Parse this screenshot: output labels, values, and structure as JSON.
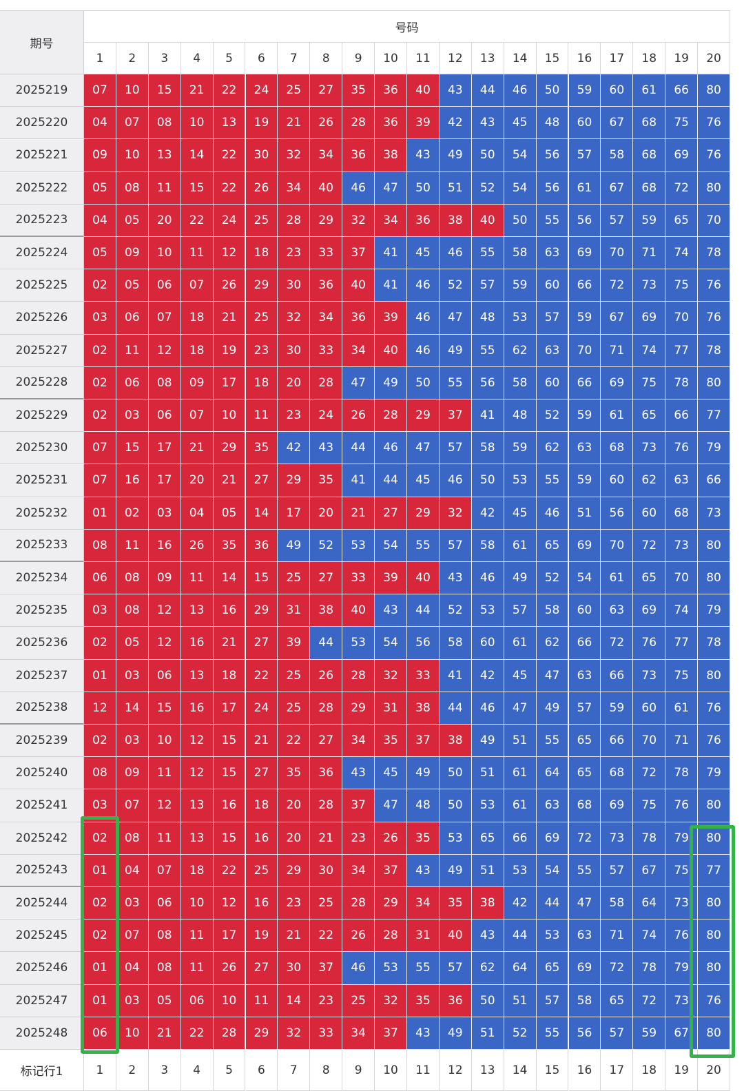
{
  "table": {
    "header": {
      "period": "期号",
      "numbers": "号码",
      "columns": [
        1,
        2,
        3,
        4,
        5,
        6,
        7,
        8,
        9,
        10,
        11,
        12,
        13,
        14,
        15,
        16,
        17,
        18,
        19,
        20
      ]
    },
    "rows": [
      {
        "period": "2025219",
        "numbers": [
          "07",
          "10",
          "15",
          "21",
          "22",
          "24",
          "25",
          "27",
          "35",
          "36",
          "40",
          "43",
          "44",
          "46",
          "50",
          "59",
          "60",
          "61",
          "66",
          "80"
        ]
      },
      {
        "period": "2025220",
        "numbers": [
          "04",
          "07",
          "08",
          "10",
          "13",
          "19",
          "21",
          "26",
          "28",
          "36",
          "39",
          "42",
          "43",
          "45",
          "48",
          "60",
          "67",
          "68",
          "75",
          "76"
        ]
      },
      {
        "period": "2025221",
        "numbers": [
          "09",
          "10",
          "13",
          "14",
          "22",
          "30",
          "32",
          "34",
          "36",
          "38",
          "43",
          "49",
          "50",
          "54",
          "56",
          "57",
          "58",
          "68",
          "69",
          "76"
        ]
      },
      {
        "period": "2025222",
        "numbers": [
          "05",
          "08",
          "11",
          "15",
          "22",
          "26",
          "34",
          "40",
          "46",
          "47",
          "50",
          "51",
          "52",
          "54",
          "56",
          "61",
          "67",
          "68",
          "72",
          "80"
        ]
      },
      {
        "period": "2025223",
        "numbers": [
          "04",
          "05",
          "20",
          "22",
          "24",
          "25",
          "28",
          "29",
          "32",
          "34",
          "36",
          "38",
          "40",
          "50",
          "55",
          "56",
          "57",
          "59",
          "65",
          "70"
        ]
      },
      {
        "period": "2025224",
        "numbers": [
          "05",
          "09",
          "10",
          "11",
          "12",
          "18",
          "23",
          "33",
          "37",
          "41",
          "45",
          "46",
          "55",
          "58",
          "63",
          "69",
          "70",
          "71",
          "74",
          "78"
        ]
      },
      {
        "period": "2025225",
        "numbers": [
          "02",
          "05",
          "06",
          "07",
          "26",
          "29",
          "30",
          "36",
          "40",
          "41",
          "46",
          "52",
          "57",
          "59",
          "60",
          "66",
          "72",
          "73",
          "75",
          "76"
        ]
      },
      {
        "period": "2025226",
        "numbers": [
          "03",
          "06",
          "07",
          "18",
          "21",
          "25",
          "32",
          "34",
          "36",
          "39",
          "46",
          "47",
          "48",
          "53",
          "57",
          "59",
          "67",
          "69",
          "70",
          "76"
        ]
      },
      {
        "period": "2025227",
        "numbers": [
          "02",
          "11",
          "12",
          "18",
          "19",
          "23",
          "30",
          "33",
          "34",
          "40",
          "46",
          "49",
          "55",
          "62",
          "63",
          "70",
          "71",
          "74",
          "77",
          "78"
        ]
      },
      {
        "period": "2025228",
        "numbers": [
          "02",
          "06",
          "08",
          "09",
          "17",
          "18",
          "20",
          "28",
          "47",
          "49",
          "50",
          "55",
          "56",
          "58",
          "60",
          "66",
          "69",
          "75",
          "78",
          "80"
        ]
      },
      {
        "period": "2025229",
        "numbers": [
          "02",
          "03",
          "06",
          "07",
          "10",
          "11",
          "23",
          "24",
          "26",
          "28",
          "29",
          "37",
          "41",
          "48",
          "52",
          "59",
          "61",
          "65",
          "66",
          "77"
        ]
      },
      {
        "period": "2025230",
        "numbers": [
          "07",
          "15",
          "17",
          "21",
          "29",
          "35",
          "42",
          "43",
          "44",
          "46",
          "47",
          "57",
          "58",
          "59",
          "62",
          "63",
          "68",
          "73",
          "76",
          "79"
        ]
      },
      {
        "period": "2025231",
        "numbers": [
          "07",
          "16",
          "17",
          "20",
          "21",
          "27",
          "29",
          "35",
          "41",
          "44",
          "45",
          "46",
          "50",
          "53",
          "55",
          "59",
          "60",
          "62",
          "63",
          "66"
        ]
      },
      {
        "period": "2025232",
        "numbers": [
          "01",
          "02",
          "03",
          "04",
          "05",
          "14",
          "17",
          "20",
          "21",
          "27",
          "29",
          "32",
          "42",
          "45",
          "46",
          "51",
          "56",
          "60",
          "68",
          "73"
        ]
      },
      {
        "period": "2025233",
        "numbers": [
          "08",
          "11",
          "16",
          "26",
          "35",
          "36",
          "49",
          "52",
          "53",
          "54",
          "55",
          "57",
          "58",
          "61",
          "65",
          "69",
          "70",
          "72",
          "73",
          "80"
        ]
      },
      {
        "period": "2025234",
        "numbers": [
          "06",
          "08",
          "09",
          "11",
          "14",
          "15",
          "25",
          "27",
          "33",
          "39",
          "40",
          "43",
          "46",
          "49",
          "52",
          "54",
          "61",
          "65",
          "70",
          "80"
        ]
      },
      {
        "period": "2025235",
        "numbers": [
          "03",
          "08",
          "12",
          "13",
          "16",
          "29",
          "31",
          "38",
          "40",
          "43",
          "44",
          "52",
          "53",
          "57",
          "58",
          "60",
          "63",
          "69",
          "74",
          "79"
        ]
      },
      {
        "period": "2025236",
        "numbers": [
          "02",
          "05",
          "12",
          "16",
          "21",
          "27",
          "39",
          "44",
          "53",
          "54",
          "56",
          "58",
          "60",
          "61",
          "62",
          "66",
          "72",
          "76",
          "77",
          "78"
        ]
      },
      {
        "period": "2025237",
        "numbers": [
          "01",
          "03",
          "06",
          "13",
          "18",
          "22",
          "25",
          "26",
          "28",
          "32",
          "33",
          "41",
          "42",
          "45",
          "47",
          "63",
          "66",
          "73",
          "75",
          "80"
        ]
      },
      {
        "period": "2025238",
        "numbers": [
          "12",
          "14",
          "15",
          "16",
          "17",
          "24",
          "25",
          "28",
          "29",
          "31",
          "38",
          "44",
          "46",
          "47",
          "49",
          "57",
          "59",
          "60",
          "61",
          "76"
        ]
      },
      {
        "period": "2025239",
        "numbers": [
          "02",
          "03",
          "10",
          "12",
          "15",
          "21",
          "22",
          "27",
          "34",
          "35",
          "37",
          "38",
          "49",
          "51",
          "55",
          "65",
          "66",
          "70",
          "71",
          "76"
        ]
      },
      {
        "period": "2025240",
        "numbers": [
          "08",
          "09",
          "11",
          "12",
          "15",
          "27",
          "35",
          "36",
          "43",
          "45",
          "49",
          "50",
          "51",
          "61",
          "64",
          "65",
          "68",
          "72",
          "78",
          "79"
        ]
      },
      {
        "period": "2025241",
        "numbers": [
          "03",
          "07",
          "12",
          "13",
          "16",
          "18",
          "20",
          "28",
          "37",
          "47",
          "48",
          "50",
          "53",
          "61",
          "63",
          "68",
          "69",
          "75",
          "76",
          "80"
        ]
      },
      {
        "period": "2025242",
        "numbers": [
          "02",
          "08",
          "11",
          "13",
          "15",
          "16",
          "20",
          "21",
          "23",
          "26",
          "35",
          "53",
          "65",
          "66",
          "69",
          "72",
          "73",
          "78",
          "79",
          "80"
        ]
      },
      {
        "period": "2025243",
        "numbers": [
          "01",
          "04",
          "07",
          "18",
          "22",
          "25",
          "29",
          "30",
          "34",
          "37",
          "43",
          "49",
          "51",
          "53",
          "54",
          "55",
          "57",
          "67",
          "75",
          "77"
        ]
      },
      {
        "period": "2025244",
        "numbers": [
          "02",
          "03",
          "06",
          "10",
          "12",
          "16",
          "23",
          "25",
          "28",
          "29",
          "34",
          "35",
          "38",
          "42",
          "44",
          "47",
          "58",
          "64",
          "73",
          "80"
        ]
      },
      {
        "period": "2025245",
        "numbers": [
          "02",
          "07",
          "08",
          "11",
          "17",
          "19",
          "21",
          "22",
          "26",
          "28",
          "31",
          "40",
          "43",
          "44",
          "53",
          "63",
          "71",
          "74",
          "76",
          "80"
        ]
      },
      {
        "period": "2025246",
        "numbers": [
          "01",
          "04",
          "08",
          "11",
          "26",
          "27",
          "30",
          "37",
          "46",
          "53",
          "55",
          "57",
          "62",
          "64",
          "65",
          "69",
          "72",
          "78",
          "79",
          "80"
        ]
      },
      {
        "period": "2025247",
        "numbers": [
          "01",
          "03",
          "05",
          "06",
          "10",
          "11",
          "14",
          "23",
          "25",
          "32",
          "35",
          "36",
          "50",
          "51",
          "57",
          "58",
          "65",
          "72",
          "73",
          "76"
        ]
      },
      {
        "period": "2025248",
        "numbers": [
          "06",
          "10",
          "21",
          "22",
          "28",
          "29",
          "32",
          "33",
          "34",
          "37",
          "43",
          "49",
          "51",
          "52",
          "55",
          "56",
          "57",
          "59",
          "67",
          "80"
        ]
      }
    ],
    "footer": {
      "label": "标记行1",
      "columns": [
        1,
        2,
        3,
        4,
        5,
        6,
        7,
        8,
        9,
        10,
        11,
        12,
        13,
        14,
        15,
        16,
        17,
        18,
        19,
        20
      ]
    },
    "colors": {
      "low": "#d8263a",
      "high": "#3a66c6"
    },
    "low_max": 40
  }
}
